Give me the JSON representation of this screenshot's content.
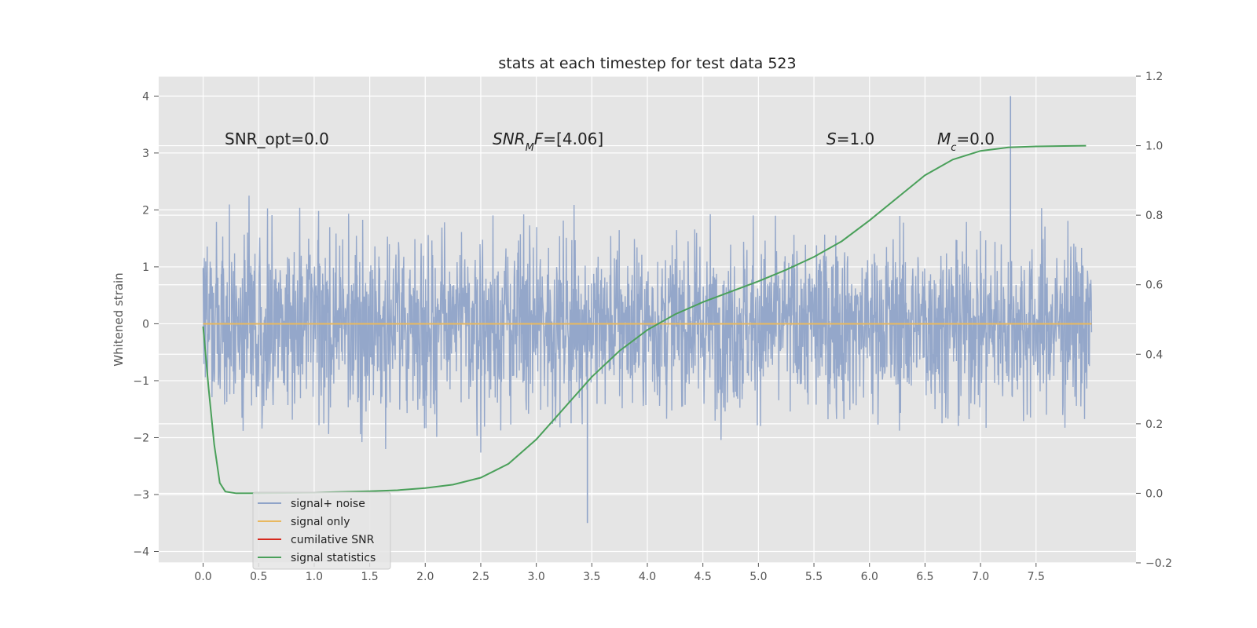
{
  "chart_data": {
    "type": "line",
    "title": "stats at each timestep for test data 523",
    "ylabel": "Whitened strain",
    "xlim": [
      -0.4,
      8.4
    ],
    "ylim": [
      -4.2,
      4.35
    ],
    "y2lim": [
      -0.2,
      1.2
    ],
    "x_ticks": [
      "0.0",
      "0.5",
      "1.0",
      "1.5",
      "2.0",
      "2.5",
      "3.0",
      "3.5",
      "4.0",
      "4.5",
      "5.0",
      "5.5",
      "6.0",
      "6.5",
      "7.0",
      "7.5"
    ],
    "y_ticks": [
      "4",
      "3",
      "2",
      "1",
      "0",
      "−1",
      "−2",
      "−3",
      "−4"
    ],
    "y2_ticks": [
      "1.2",
      "1.0",
      "0.8",
      "0.6",
      "0.4",
      "0.2",
      "0.0",
      "−0.2"
    ],
    "annotations": [
      {
        "prefix": "SNR_opt=0.0",
        "italic": "",
        "sub": "",
        "after_sub": "",
        "suffix": ""
      },
      {
        "prefix": "",
        "italic": "SNR",
        "sub": "M",
        "after_sub": "F",
        "suffix": "=[4.06]"
      },
      {
        "prefix": "",
        "italic": "S",
        "sub": "",
        "after_sub": "",
        "suffix": "=1.0"
      },
      {
        "prefix": "",
        "italic": "M",
        "sub": "c",
        "after_sub": "",
        "suffix": "=0.0"
      }
    ],
    "series": [
      {
        "name": "signal+ noise",
        "color": "#8fa3c8",
        "axis": "left",
        "kind": "noise",
        "x_range": [
          0,
          8.0
        ],
        "std": 0.75,
        "max": 4.0,
        "min": -3.5
      },
      {
        "name": "signal only",
        "color": "#e8b860",
        "axis": "left",
        "x": [
          0,
          8.0
        ],
        "y": [
          0,
          0
        ]
      },
      {
        "name": "cumilative SNR",
        "color": "#d62a1e",
        "axis": "left",
        "x": [],
        "y": []
      },
      {
        "name": "signal statistics",
        "color": "#4aa05a",
        "axis": "right",
        "x": [
          0.0,
          0.05,
          0.1,
          0.15,
          0.2,
          0.3,
          0.5,
          1.0,
          1.5,
          1.75,
          2.0,
          2.25,
          2.5,
          2.75,
          3.0,
          3.25,
          3.5,
          3.75,
          4.0,
          4.25,
          4.5,
          4.75,
          5.0,
          5.25,
          5.5,
          5.75,
          6.0,
          6.25,
          6.5,
          6.75,
          7.0,
          7.25,
          7.5,
          7.75,
          7.95
        ],
        "y": [
          0.48,
          0.3,
          0.14,
          0.03,
          0.005,
          0.0,
          0.0,
          0.002,
          0.006,
          0.009,
          0.015,
          0.025,
          0.045,
          0.085,
          0.155,
          0.245,
          0.335,
          0.41,
          0.47,
          0.515,
          0.55,
          0.58,
          0.61,
          0.643,
          0.68,
          0.725,
          0.785,
          0.85,
          0.915,
          0.96,
          0.985,
          0.995,
          0.998,
          0.999,
          1.0
        ]
      }
    ],
    "legend_position": "lower left",
    "grid": true
  }
}
